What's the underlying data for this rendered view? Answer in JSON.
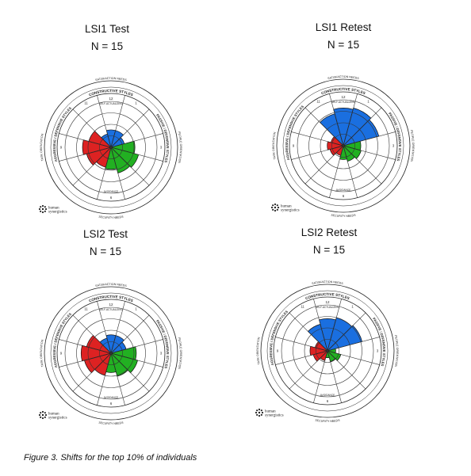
{
  "colors": {
    "constructive": "#1a6fe0",
    "passive_defensive": "#22b022",
    "aggressive_defensive": "#dd2222",
    "ring": "#222222"
  },
  "circumplex_labels": {
    "top_need": "SATISFACTION NEEDS",
    "top_style": "CONSTRUCTIVE STYLES",
    "bottom_need": "SECURITY NEEDS",
    "left_orientation": "TASK ORIENTATION",
    "right_orientation": "PEOPLE ORIENTATION",
    "left_style": "AGGRESSIVE / DEFENSIVE STYLES",
    "right_style": "PASSIVE / DEFENSIVE STYLES",
    "position_12": "12",
    "position_1": "1",
    "position_3": "3",
    "position_6": "6",
    "position_9": "9",
    "position_11": "11",
    "inner_top": "SELF-ACTUALIZING",
    "inner_bottom": "AVOIDANCE",
    "brand_line1": "human",
    "brand_line2": "synergistics"
  },
  "chart_data": [
    {
      "type": "radar",
      "title": "LSI1 Test",
      "subtitle": "N = 15",
      "theta_unit": "clock position (12 styles)",
      "r_range": [
        0,
        100
      ],
      "series": [
        {
          "name": "Constructive",
          "color": "#1a6fe0",
          "segments": [
            {
              "pos": 11,
              "r": 30
            },
            {
              "pos": 12,
              "r": 38
            },
            {
              "pos": 1,
              "r": 38
            },
            {
              "pos": 2,
              "r": 30
            }
          ]
        },
        {
          "name": "Passive/Defensive",
          "color": "#22b022",
          "segments": [
            {
              "pos": 3,
              "r": 52
            },
            {
              "pos": 4,
              "r": 62
            },
            {
              "pos": 5,
              "r": 58
            },
            {
              "pos": 6,
              "r": 48
            }
          ]
        },
        {
          "name": "Aggressive/Defensive",
          "color": "#dd2222",
          "segments": [
            {
              "pos": 7,
              "r": 45
            },
            {
              "pos": 8,
              "r": 55
            },
            {
              "pos": 9,
              "r": 62
            },
            {
              "pos": 10,
              "r": 50
            }
          ]
        }
      ]
    },
    {
      "type": "radar",
      "title": "LSI1 Retest",
      "subtitle": "N = 15",
      "theta_unit": "clock position (12 styles)",
      "r_range": [
        0,
        100
      ],
      "series": [
        {
          "name": "Constructive",
          "color": "#1a6fe0",
          "segments": [
            {
              "pos": 11,
              "r": 72
            },
            {
              "pos": 12,
              "r": 82
            },
            {
              "pos": 1,
              "r": 85
            },
            {
              "pos": 2,
              "r": 80
            }
          ]
        },
        {
          "name": "Passive/Defensive",
          "color": "#22b022",
          "segments": [
            {
              "pos": 3,
              "r": 38
            },
            {
              "pos": 4,
              "r": 40
            },
            {
              "pos": 5,
              "r": 35
            },
            {
              "pos": 6,
              "r": 30
            }
          ]
        },
        {
          "name": "Aggressive/Defensive",
          "color": "#dd2222",
          "segments": [
            {
              "pos": 7,
              "r": 22
            },
            {
              "pos": 8,
              "r": 30
            },
            {
              "pos": 9,
              "r": 35
            },
            {
              "pos": 10,
              "r": 28
            }
          ]
        }
      ]
    },
    {
      "type": "radar",
      "title": "LSI2 Test",
      "subtitle": "N = 15",
      "theta_unit": "clock position (12 styles)",
      "r_range": [
        0,
        100
      ],
      "series": [
        {
          "name": "Constructive",
          "color": "#1a6fe0",
          "segments": [
            {
              "pos": 11,
              "r": 34
            },
            {
              "pos": 12,
              "r": 40
            },
            {
              "pos": 1,
              "r": 40
            },
            {
              "pos": 2,
              "r": 34
            }
          ]
        },
        {
          "name": "Passive/Defensive",
          "color": "#22b022",
          "segments": [
            {
              "pos": 3,
              "r": 55
            },
            {
              "pos": 4,
              "r": 60
            },
            {
              "pos": 5,
              "r": 52
            },
            {
              "pos": 6,
              "r": 42
            }
          ]
        },
        {
          "name": "Aggressive/Defensive",
          "color": "#dd2222",
          "segments": [
            {
              "pos": 7,
              "r": 50
            },
            {
              "pos": 8,
              "r": 60
            },
            {
              "pos": 9,
              "r": 65
            },
            {
              "pos": 10,
              "r": 55
            }
          ]
        }
      ]
    },
    {
      "type": "radar",
      "title": "LSI2 Retest",
      "subtitle": "N = 15",
      "theta_unit": "clock position (12 styles)",
      "r_range": [
        0,
        100
      ],
      "series": [
        {
          "name": "Constructive",
          "color": "#1a6fe0",
          "segments": [
            {
              "pos": 11,
              "r": 60
            },
            {
              "pos": 12,
              "r": 70
            },
            {
              "pos": 1,
              "r": 75
            },
            {
              "pos": 2,
              "r": 78
            }
          ]
        },
        {
          "name": "Passive/Defensive",
          "color": "#22b022",
          "segments": [
            {
              "pos": 3,
              "r": 18
            },
            {
              "pos": 4,
              "r": 30
            },
            {
              "pos": 5,
              "r": 24
            },
            {
              "pos": 6,
              "r": 15
            }
          ]
        },
        {
          "name": "Aggressive/Defensive",
          "color": "#dd2222",
          "segments": [
            {
              "pos": 7,
              "r": 22
            },
            {
              "pos": 8,
              "r": 32
            },
            {
              "pos": 9,
              "r": 38
            },
            {
              "pos": 10,
              "r": 28
            }
          ]
        }
      ]
    }
  ],
  "caption": "Figure 3. Shifts for the top 10% of individuals"
}
